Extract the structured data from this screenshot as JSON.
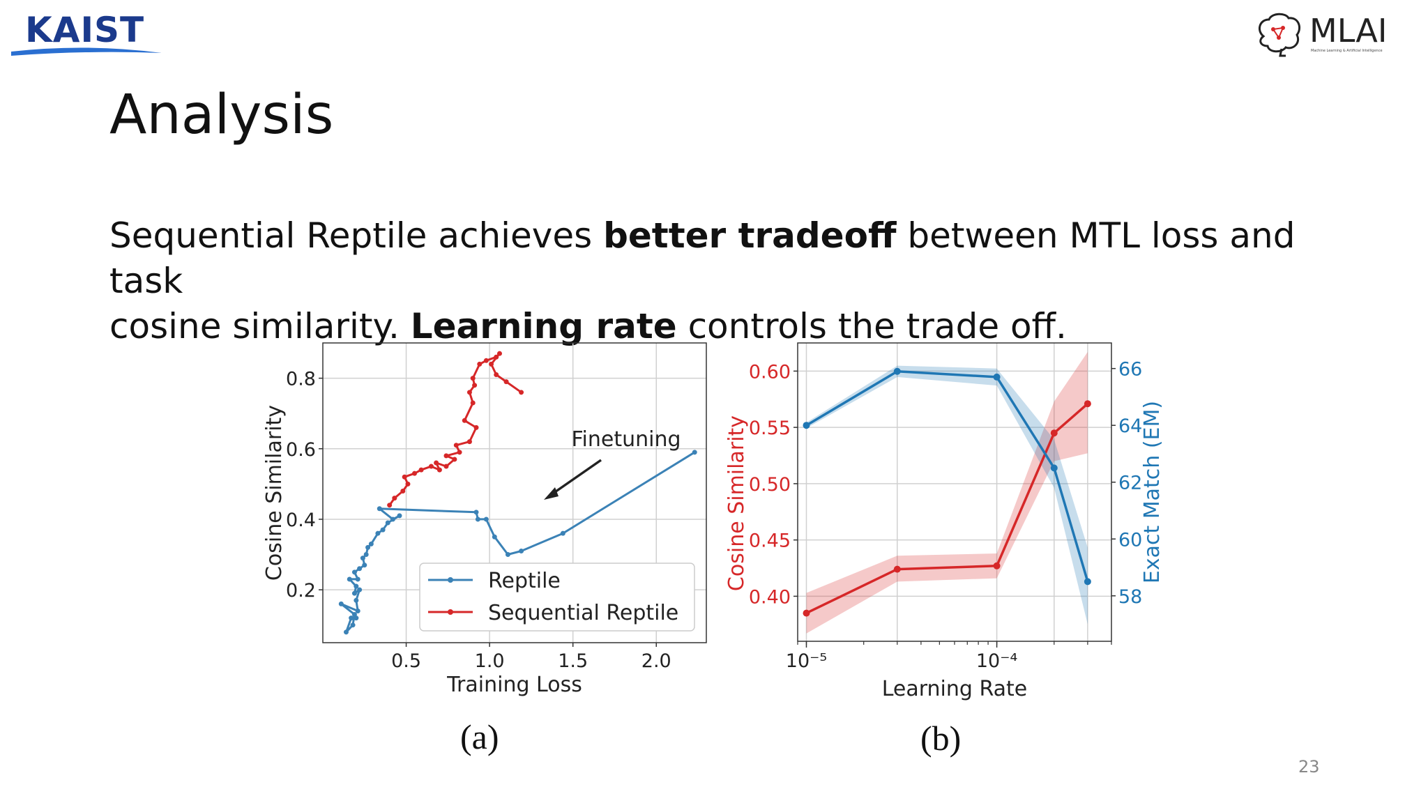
{
  "header": {
    "kaist_logo_text": "KAIST",
    "mlai_logo_text": "MLAI",
    "mlai_logo_subtext": "Machine Learning & Artificial Intelligence"
  },
  "slide": {
    "title": "Analysis",
    "line1_a": "Sequential Reptile achieves ",
    "line1_b": "better tradeoff",
    "line1_c": " between MTL loss and  task",
    "line2_a": "cosine similarity. ",
    "line2_b": "Learning rate",
    "line2_c": " controls the trade off.",
    "caption_a": "(a)",
    "caption_b": "(b)",
    "page_number": "23"
  },
  "colors": {
    "red": "#d62728",
    "blue": "#1f77b4",
    "reptile_blue": "#3b82b6"
  },
  "chart_data": [
    {
      "type": "line",
      "xlabel": "Training Loss",
      "ylabel": "Cosine Similarity",
      "xlim": [
        0.0,
        2.3
      ],
      "ylim": [
        0.05,
        0.9
      ],
      "xticks": [
        0.5,
        1.0,
        1.5,
        2.0
      ],
      "xtick_labels": [
        "0.5",
        "1.0",
        "1.5",
        "2.0"
      ],
      "yticks": [
        0.2,
        0.4,
        0.6,
        0.8
      ],
      "ytick_labels": [
        "0.2",
        "0.4",
        "0.6",
        "0.8"
      ],
      "grid": true,
      "legend": "bottom-right",
      "annotation": "Finetuning",
      "series": [
        {
          "name": "Reptile",
          "color": "#3b82b6",
          "points": [
            [
              2.23,
              0.59
            ],
            [
              1.44,
              0.36
            ],
            [
              1.19,
              0.31
            ],
            [
              1.11,
              0.3
            ],
            [
              1.03,
              0.35
            ],
            [
              0.98,
              0.4
            ],
            [
              0.93,
              0.4
            ],
            [
              0.92,
              0.42
            ],
            [
              0.34,
              0.43
            ],
            [
              0.42,
              0.4
            ],
            [
              0.46,
              0.41
            ],
            [
              0.39,
              0.39
            ],
            [
              0.36,
              0.37
            ],
            [
              0.33,
              0.36
            ],
            [
              0.29,
              0.33
            ],
            [
              0.27,
              0.32
            ],
            [
              0.26,
              0.3
            ],
            [
              0.24,
              0.29
            ],
            [
              0.25,
              0.27
            ],
            [
              0.22,
              0.26
            ],
            [
              0.19,
              0.25
            ],
            [
              0.21,
              0.23
            ],
            [
              0.16,
              0.23
            ],
            [
              0.2,
              0.21
            ],
            [
              0.19,
              0.19
            ],
            [
              0.22,
              0.2
            ],
            [
              0.2,
              0.17
            ],
            [
              0.21,
              0.14
            ],
            [
              0.11,
              0.16
            ],
            [
              0.19,
              0.13
            ],
            [
              0.18,
              0.1
            ],
            [
              0.14,
              0.08
            ],
            [
              0.17,
              0.12
            ],
            [
              0.2,
              0.12
            ]
          ]
        },
        {
          "name": "Sequential Reptile",
          "color": "#d62728",
          "points": [
            [
              0.4,
              0.44
            ],
            [
              0.43,
              0.46
            ],
            [
              0.48,
              0.48
            ],
            [
              0.51,
              0.5
            ],
            [
              0.49,
              0.52
            ],
            [
              0.55,
              0.53
            ],
            [
              0.59,
              0.54
            ],
            [
              0.65,
              0.55
            ],
            [
              0.7,
              0.54
            ],
            [
              0.68,
              0.56
            ],
            [
              0.74,
              0.55
            ],
            [
              0.79,
              0.57
            ],
            [
              0.74,
              0.58
            ],
            [
              0.82,
              0.59
            ],
            [
              0.8,
              0.61
            ],
            [
              0.88,
              0.62
            ],
            [
              0.92,
              0.66
            ],
            [
              0.85,
              0.68
            ],
            [
              0.9,
              0.73
            ],
            [
              0.88,
              0.76
            ],
            [
              0.91,
              0.78
            ],
            [
              0.9,
              0.8
            ],
            [
              0.94,
              0.84
            ],
            [
              0.98,
              0.85
            ],
            [
              1.04,
              0.86
            ],
            [
              1.06,
              0.87
            ],
            [
              1.01,
              0.84
            ],
            [
              1.04,
              0.81
            ],
            [
              1.1,
              0.79
            ],
            [
              1.19,
              0.76
            ]
          ]
        }
      ]
    },
    {
      "type": "line",
      "xlabel": "Learning Rate",
      "ylabel": "Cosine Similarity",
      "ylabel_right": "Exact Match (EM)",
      "xscale": "log",
      "xlim": [
        9e-06,
        0.0004
      ],
      "xticks": [
        1e-05,
        0.0001
      ],
      "xtick_labels": [
        "10⁻⁵",
        "10⁻⁴"
      ],
      "ylim": [
        0.36,
        0.625
      ],
      "yticks": [
        0.4,
        0.45,
        0.5,
        0.55,
        0.6
      ],
      "ytick_labels": [
        "0.40",
        "0.45",
        "0.50",
        "0.55",
        "0.60"
      ],
      "ylim_right": [
        56.4,
        66.9
      ],
      "yticks_right": [
        58,
        60,
        62,
        64,
        66
      ],
      "ytick_labels_right": [
        "58",
        "60",
        "62",
        "64",
        "66"
      ],
      "grid": true,
      "series": [
        {
          "name": "Cosine Similarity",
          "axis": "left",
          "color": "#d62728",
          "x": [
            1e-05,
            3e-05,
            0.0001,
            0.0002,
            0.0003
          ],
          "y": [
            0.385,
            0.424,
            0.427,
            0.545,
            0.571
          ],
          "band": [
            [
              0.367,
              0.403
            ],
            [
              0.413,
              0.436
            ],
            [
              0.416,
              0.438
            ],
            [
              0.52,
              0.573
            ],
            [
              0.527,
              0.617
            ]
          ]
        },
        {
          "name": "Exact Match (EM)",
          "axis": "right",
          "color": "#1f77b4",
          "x": [
            1e-05,
            3e-05,
            0.0001,
            0.0002,
            0.0003
          ],
          "y": [
            64.0,
            65.9,
            65.7,
            62.5,
            58.5
          ],
          "band": [
            [
              63.9,
              64.1
            ],
            [
              65.7,
              66.1
            ],
            [
              65.4,
              66.0
            ],
            [
              61.8,
              63.5
            ],
            [
              57.0,
              59.7
            ]
          ]
        }
      ]
    }
  ]
}
